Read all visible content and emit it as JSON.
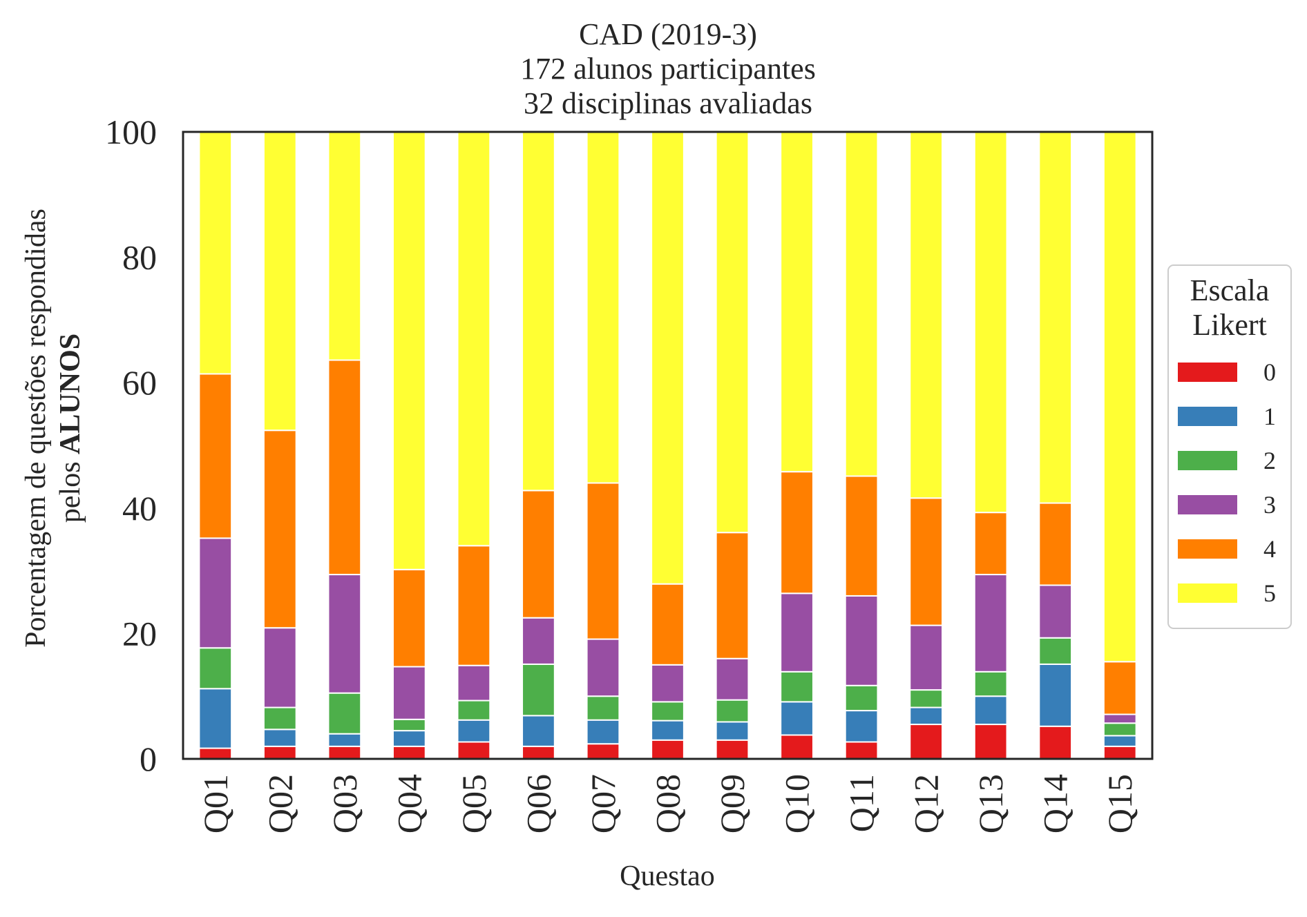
{
  "chart_data": {
    "type": "bar",
    "stacked": true,
    "title_lines": [
      "CAD (2019-3)",
      "172 alunos participantes",
      "32 disciplinas avaliadas"
    ],
    "xlabel": "Questao",
    "ylabel_line1": "Porcentagem de questões respondidas",
    "ylabel_line2_prefix": "pelos ",
    "ylabel_line2_bold": "ALUNOS",
    "ylim": [
      0,
      100
    ],
    "yticks": [
      0,
      20,
      40,
      60,
      80,
      100
    ],
    "grid": false,
    "legend": {
      "title_lines": [
        "Escala",
        "Likert"
      ],
      "placement": "right-center"
    },
    "categories": [
      "Q01",
      "Q02",
      "Q03",
      "Q04",
      "Q05",
      "Q06",
      "Q07",
      "Q08",
      "Q09",
      "Q10",
      "Q11",
      "Q12",
      "Q13",
      "Q14",
      "Q15"
    ],
    "series": [
      {
        "name": "0",
        "color": "#e41a1c",
        "values": [
          1.7,
          2.0,
          2.0,
          2.0,
          2.7,
          2.0,
          2.4,
          3.0,
          3.0,
          3.8,
          2.7,
          5.5,
          5.5,
          5.2,
          2.0
        ]
      },
      {
        "name": "1",
        "color": "#377eb8",
        "values": [
          9.5,
          2.7,
          2.0,
          2.5,
          3.5,
          4.9,
          3.8,
          3.1,
          2.9,
          5.3,
          5.0,
          2.7,
          4.5,
          9.9,
          1.7
        ]
      },
      {
        "name": "2",
        "color": "#4daf4a",
        "values": [
          6.5,
          3.5,
          6.5,
          1.8,
          3.1,
          8.2,
          3.8,
          3.0,
          3.5,
          4.8,
          4.0,
          2.8,
          3.9,
          4.2,
          2.0
        ]
      },
      {
        "name": "3",
        "color": "#984ea3",
        "values": [
          17.5,
          12.7,
          18.9,
          8.4,
          5.6,
          7.4,
          9.1,
          5.9,
          6.6,
          12.5,
          14.3,
          10.3,
          15.5,
          8.4,
          1.4
        ]
      },
      {
        "name": "4",
        "color": "#ff7f00",
        "values": [
          26.2,
          31.5,
          34.2,
          15.5,
          19.1,
          20.3,
          24.9,
          12.9,
          20.1,
          19.4,
          19.1,
          20.3,
          9.9,
          13.1,
          8.4
        ]
      },
      {
        "name": "5",
        "color": "#ffff33",
        "values": [
          38.6,
          47.6,
          36.4,
          69.8,
          66.0,
          57.2,
          56.0,
          72.1,
          63.9,
          54.2,
          54.9,
          58.4,
          60.7,
          59.2,
          84.5
        ]
      }
    ]
  }
}
